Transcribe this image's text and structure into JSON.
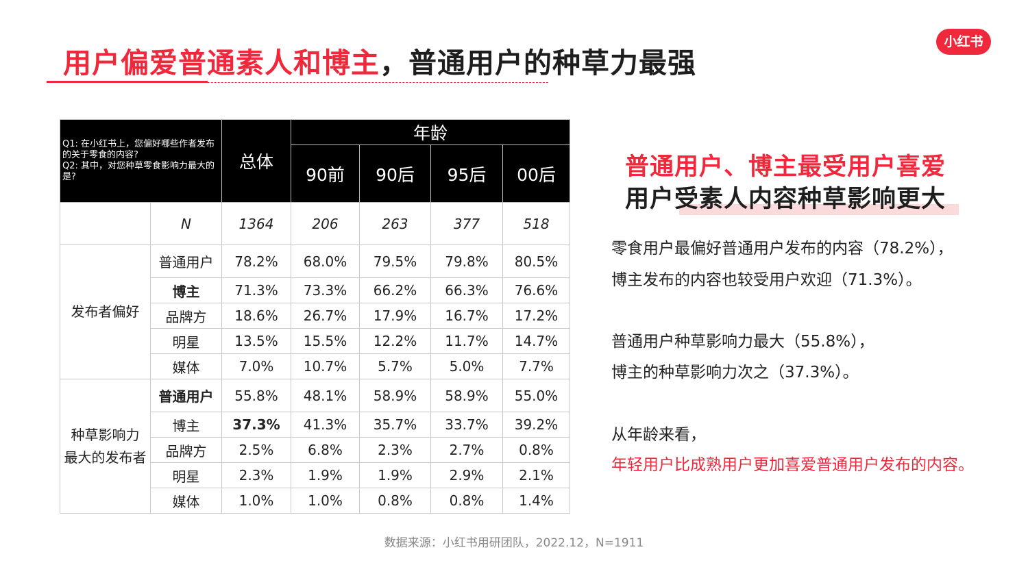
{
  "title": {
    "red": "用户偏爱普通素人和博主",
    "black": "，普通用户的种草力最强"
  },
  "logo": "小红书",
  "table": {
    "question": "Q1: 在小红书上，您偏好哪些作者发布的关于零食的内容?\nQ2: 其中，对您种草零食影响力最大的是?",
    "total_label": "总体",
    "age_label": "年龄",
    "age_groups": [
      "90前",
      "90后",
      "95后",
      "00后"
    ],
    "n_row": {
      "label": "N",
      "values": [
        "1364",
        "206",
        "263",
        "377",
        "518"
      ]
    },
    "groups": [
      {
        "name": "发布者偏好",
        "rows": [
          {
            "label": "普通用户",
            "values": [
              "78.2%",
              "68.0%",
              "79.5%",
              "79.8%",
              "80.5%"
            ]
          },
          {
            "label": "博主",
            "values": [
              "71.3%",
              "73.3%",
              "66.2%",
              "66.3%",
              "76.6%"
            ]
          },
          {
            "label": "品牌方",
            "values": [
              "18.6%",
              "26.7%",
              "17.9%",
              "16.7%",
              "17.2%"
            ]
          },
          {
            "label": "明星",
            "values": [
              "13.5%",
              "15.5%",
              "12.2%",
              "11.7%",
              "14.7%"
            ]
          },
          {
            "label": "媒体",
            "values": [
              "7.0%",
              "10.7%",
              "5.7%",
              "5.0%",
              "7.7%"
            ]
          }
        ]
      },
      {
        "name": "种草影响力\n最大的发布者",
        "rows": [
          {
            "label": "普通用户",
            "values": [
              "55.8%",
              "48.1%",
              "58.9%",
              "58.9%",
              "55.0%"
            ]
          },
          {
            "label": "博主",
            "values": [
              "37.3%",
              "41.3%",
              "35.7%",
              "33.7%",
              "39.2%"
            ]
          },
          {
            "label": "品牌方",
            "values": [
              "2.5%",
              "6.8%",
              "2.3%",
              "2.7%",
              "0.8%"
            ]
          },
          {
            "label": "明星",
            "values": [
              "2.3%",
              "1.9%",
              "1.9%",
              "2.9%",
              "2.1%"
            ]
          },
          {
            "label": "媒体",
            "values": [
              "1.0%",
              "1.0%",
              "0.8%",
              "0.8%",
              "1.4%"
            ]
          }
        ]
      }
    ]
  },
  "side": {
    "headline1": "普通用户、博主最受用户喜爱",
    "headline2": "用户受素人内容种草影响更大",
    "p1": "零食用户最偏好普通用户发布的内容（78.2%），",
    "p2": "博主发布的内容也较受用户欢迎（71.3%）。",
    "p3": "普通用户种草影响力最大（55.8%），",
    "p4": "博主的种草影响力次之（37.3%）。",
    "p5": "从年龄来看，",
    "p6": "年轻用户比成熟用户更加喜爱普通用户发布的内容。"
  },
  "source": "数据来源：小红书用研团队，2022.12，N=1911",
  "colors": {
    "accent": "#f0283c",
    "header_bg": "#000000"
  }
}
